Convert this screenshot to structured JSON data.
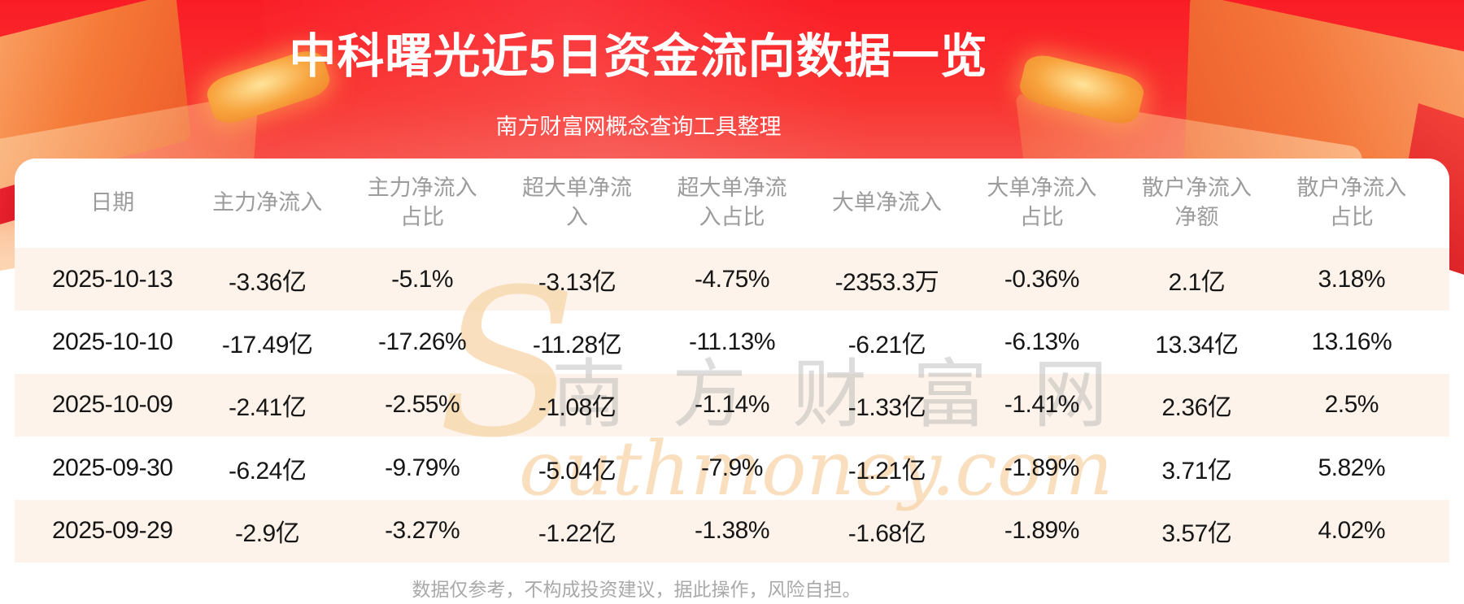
{
  "banner": {
    "title": "中科曙光近5日资金流向数据一览",
    "subtitle": "南方财富网概念查询工具整理",
    "bg_top_color": "#fa1c25",
    "bg_mid_color": "#f74f49"
  },
  "table": {
    "headers_display": [
      "日期",
      "主力净流入",
      "主力净流入\n占比",
      "超大单净流\n入",
      "超大单净流\n入占比",
      "大单净流入",
      "大单净流入\n占比",
      "散户净流入\n净额",
      "散户净流入\n占比"
    ],
    "zebra_row_color": "#fdf3ea",
    "header_text_color": "#9c9c9c",
    "cell_text_color": "#161616",
    "bottom_rule_color": "#f2bd86"
  },
  "chart_data": {
    "type": "table",
    "title": "中科曙光近5日资金流向数据一览",
    "subtitle": "南方财富网概念查询工具整理",
    "columns": [
      "日期",
      "主力净流入",
      "主力净流入占比",
      "超大单净流入",
      "超大单净流入占比",
      "大单净流入",
      "大单净流入占比",
      "散户净流入净额",
      "散户净流入占比"
    ],
    "rows": [
      [
        "2025-10-13",
        "-3.36亿",
        "-5.1%",
        "-3.13亿",
        "-4.75%",
        "-2353.3万",
        "-0.36%",
        "2.1亿",
        "3.18%"
      ],
      [
        "2025-10-10",
        "-17.49亿",
        "-17.26%",
        "-11.28亿",
        "-11.13%",
        "-6.21亿",
        "-6.13%",
        "13.34亿",
        "13.16%"
      ],
      [
        "2025-10-09",
        "-2.41亿",
        "-2.55%",
        "-1.08亿",
        "-1.14%",
        "-1.33亿",
        "-1.41%",
        "2.36亿",
        "2.5%"
      ],
      [
        "2025-09-30",
        "-6.24亿",
        "-9.79%",
        "-5.04亿",
        "-7.9%",
        "-1.21亿",
        "-1.89%",
        "3.71亿",
        "5.82%"
      ],
      [
        "2025-09-29",
        "-2.9亿",
        "-3.27%",
        "-1.22亿",
        "-1.38%",
        "-1.68亿",
        "-1.89%",
        "3.57亿",
        "4.02%"
      ]
    ]
  },
  "watermark": {
    "initial": "S",
    "cn": "南方财富网",
    "latin": "outhmoney.com",
    "color": "#f8d8ae"
  },
  "footer": {
    "disclaimer": "数据仅参考，不构成投资建议，据此操作，风险自担。"
  }
}
